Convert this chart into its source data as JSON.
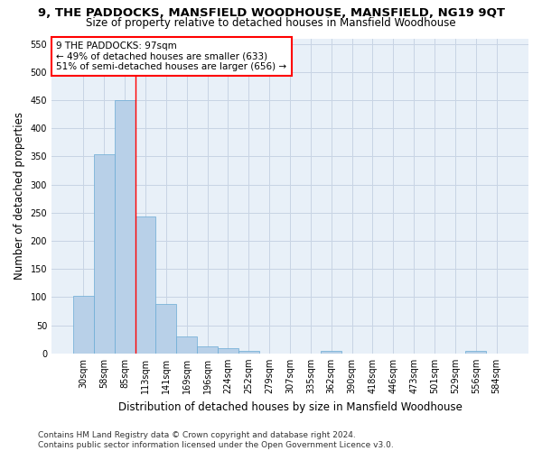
{
  "title": "9, THE PADDOCKS, MANSFIELD WOODHOUSE, MANSFIELD, NG19 9QT",
  "subtitle": "Size of property relative to detached houses in Mansfield Woodhouse",
  "xlabel": "Distribution of detached houses by size in Mansfield Woodhouse",
  "ylabel": "Number of detached properties",
  "bar_color": "#b8d0e8",
  "bar_edge_color": "#6aaad4",
  "grid_color": "#c8d4e4",
  "bg_color": "#e8f0f8",
  "bins": [
    "30sqm",
    "58sqm",
    "85sqm",
    "113sqm",
    "141sqm",
    "169sqm",
    "196sqm",
    "224sqm",
    "252sqm",
    "279sqm",
    "307sqm",
    "335sqm",
    "362sqm",
    "390sqm",
    "418sqm",
    "446sqm",
    "473sqm",
    "501sqm",
    "529sqm",
    "556sqm",
    "584sqm"
  ],
  "values": [
    103,
    354,
    450,
    243,
    88,
    30,
    13,
    9,
    5,
    0,
    0,
    0,
    5,
    0,
    0,
    0,
    0,
    0,
    0,
    5,
    0
  ],
  "ylim": [
    0,
    560
  ],
  "yticks": [
    0,
    50,
    100,
    150,
    200,
    250,
    300,
    350,
    400,
    450,
    500,
    550
  ],
  "red_line_x": 2.5,
  "annotation_text": "9 THE PADDOCKS: 97sqm\n← 49% of detached houses are smaller (633)\n51% of semi-detached houses are larger (656) →",
  "annotation_box_color": "white",
  "annotation_border_color": "red",
  "footer": "Contains HM Land Registry data © Crown copyright and database right 2024.\nContains public sector information licensed under the Open Government Licence v3.0.",
  "title_fontsize": 9.5,
  "subtitle_fontsize": 8.5,
  "ylabel_fontsize": 8.5,
  "xlabel_fontsize": 8.5,
  "tick_fontsize": 7,
  "annotation_fontsize": 7.5,
  "footer_fontsize": 6.5
}
